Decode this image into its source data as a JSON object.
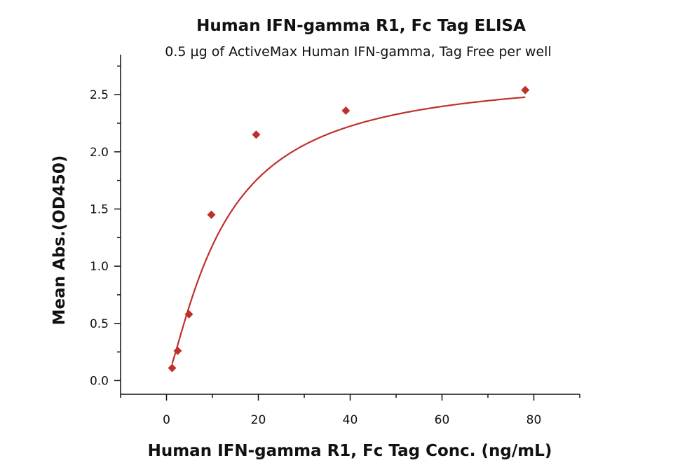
{
  "chart_data": {
    "type": "scatter",
    "title": "Human IFN-gamma R1, Fc Tag ELISA",
    "subtitle": "0.5 µg of ActiveMax Human IFN-gamma, Tag Free per well",
    "xlabel": "Human IFN-gamma R1, Fc Tag Conc. (ng/mL)",
    "ylabel": "Mean Abs.(OD450)",
    "xlim": [
      -10,
      90
    ],
    "ylim": [
      -0.12,
      2.85
    ],
    "x_ticks": [
      0,
      20,
      40,
      60,
      80
    ],
    "x_tick_labels": [
      "0",
      "20",
      "40",
      "60",
      "80"
    ],
    "y_ticks": [
      0.0,
      0.5,
      1.0,
      1.5,
      2.0,
      2.5
    ],
    "y_tick_labels": [
      "0.0",
      "0.5",
      "1.0",
      "1.5",
      "2.0",
      "2.5"
    ],
    "grid": false,
    "legend": false,
    "series": [
      {
        "x": [
          1.22,
          2.44,
          4.88,
          9.77,
          19.53,
          39.06,
          78.13
        ],
        "y": [
          0.11,
          0.26,
          0.58,
          1.45,
          2.15,
          2.36,
          2.54
        ],
        "marker": "diamond",
        "color": "#c0302b",
        "fit_line": true
      }
    ]
  }
}
